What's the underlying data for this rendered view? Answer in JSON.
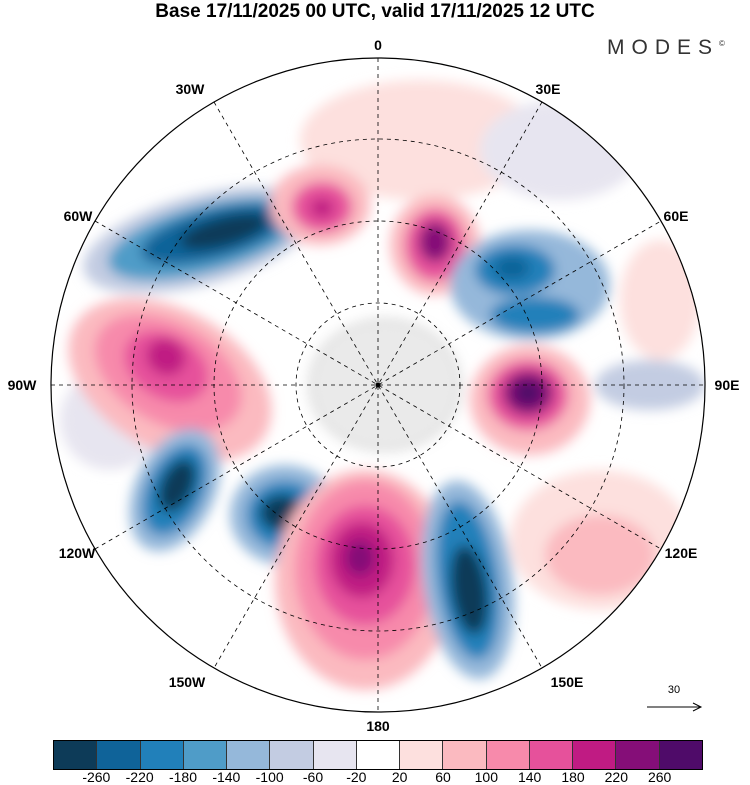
{
  "title": "Base 17/11/2025 00 UTC, valid 17/11/2025 12 UTC",
  "logo": "MODES",
  "logo_mark": "©",
  "longitude_labels": {
    "top": "0",
    "e30": "30E",
    "e60": "60E",
    "e90": "90E",
    "e120": "120E",
    "e150": "150E",
    "bottom": "180",
    "w150": "150W",
    "w120": "120W",
    "w90": "90W",
    "w60": "60W",
    "w30": "30W"
  },
  "reference_vector": {
    "label": "30"
  },
  "colorbar": {
    "ticks": [
      "-260",
      "-220",
      "-180",
      "-140",
      "-100",
      "-60",
      "-20",
      "20",
      "60",
      "100",
      "140",
      "180",
      "220",
      "260"
    ],
    "colors": [
      "#0d3b58",
      "#0f6399",
      "#2180ba",
      "#4f9cc8",
      "#95b8da",
      "#c3cce2",
      "#e7e5f0",
      "#ffffff",
      "#fde0de",
      "#fbbac0",
      "#f78aab",
      "#e6519b",
      "#c01b83",
      "#850e78",
      "#4f0b69"
    ]
  }
}
